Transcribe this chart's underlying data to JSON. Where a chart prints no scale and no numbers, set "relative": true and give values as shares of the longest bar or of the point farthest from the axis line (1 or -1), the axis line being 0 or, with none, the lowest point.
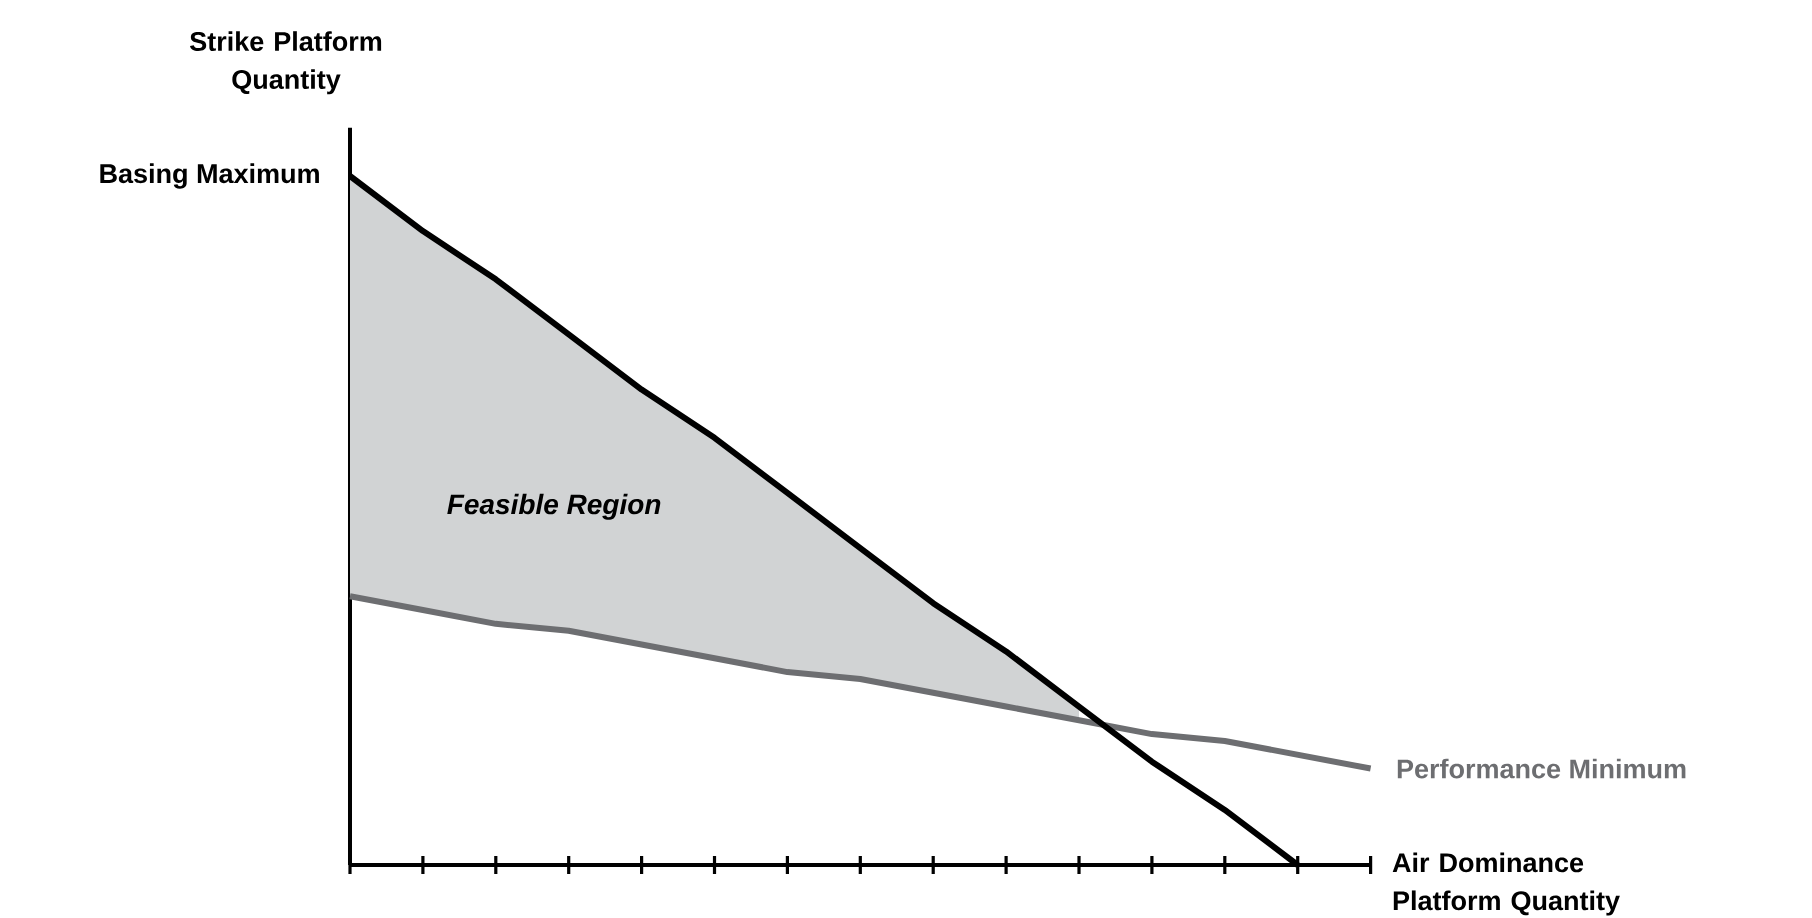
{
  "chart_data": {
    "type": "line",
    "relative": true,
    "xlabel": "Air Dominance Platform Quantity",
    "ylabel": "Strike Platform Quantity",
    "categories": [
      null,
      null,
      null,
      null,
      null,
      null,
      null,
      null,
      null,
      null,
      null,
      null,
      null,
      null,
      null
    ],
    "series": [
      {
        "name": "Basing Maximum",
        "color": "#000000",
        "values": [
          1,
          0.92,
          0.85,
          0.77,
          0.69,
          0.62,
          0.54,
          0.46,
          0.38,
          0.31,
          0.23,
          0.15,
          0.08,
          0,
          null
        ],
        "lower": [
          0.39,
          0.37,
          0.35,
          0.34,
          0.32,
          0.3,
          0.28,
          0.27,
          0.25,
          0.23,
          0.21,
          null,
          null,
          null,
          null
        ],
        "upper": [
          1,
          0.92,
          0.85,
          0.77,
          0.69,
          0.62,
          0.54,
          0.46,
          0.38,
          0.31,
          0.23,
          null,
          null,
          null,
          null
        ]
      },
      {
        "name": "Performance Minimum",
        "color": "#6d6e71",
        "values": [
          0.39,
          0.37,
          0.35,
          0.34,
          0.32,
          0.3,
          0.28,
          0.27,
          0.25,
          0.23,
          0.21,
          0.19,
          0.18,
          0.16,
          0.14
        ]
      }
    ],
    "annotations": [
      "Feasible Region"
    ],
    "marker": "none",
    "line_style": "solid",
    "grid": false
  }
}
